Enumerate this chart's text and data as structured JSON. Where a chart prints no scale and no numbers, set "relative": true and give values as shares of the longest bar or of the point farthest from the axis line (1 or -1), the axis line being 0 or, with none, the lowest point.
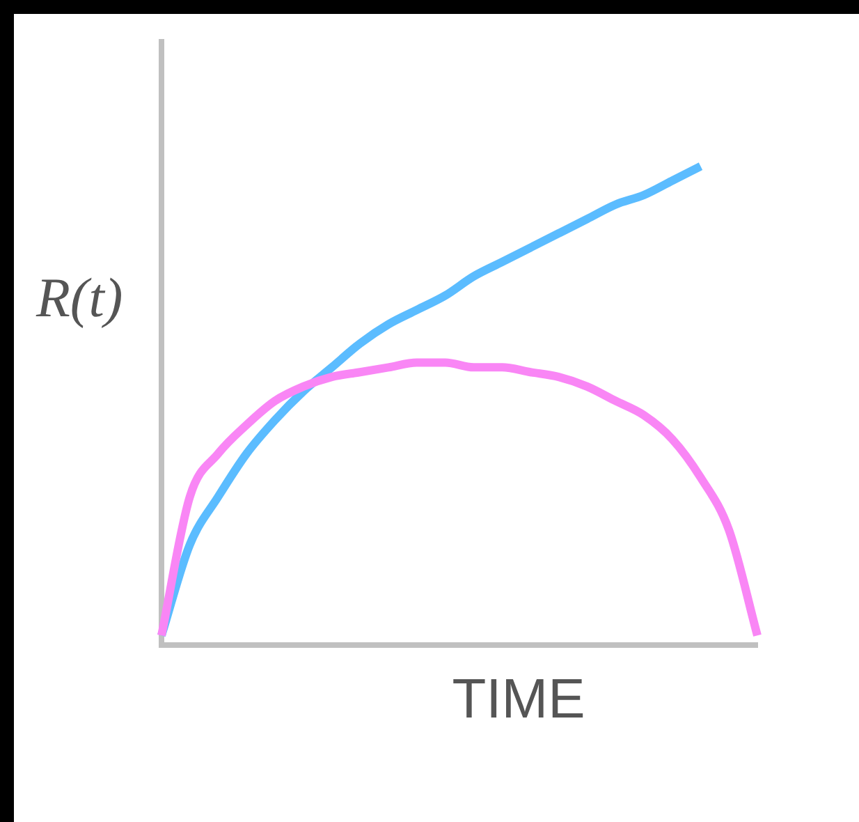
{
  "chart_data": {
    "type": "line",
    "relative": true,
    "xlabel": "TIME",
    "ylabel": "R(t)",
    "grid": false,
    "legend": false,
    "marker": "none",
    "line_style": "solid",
    "categories": [
      null,
      null,
      null,
      null,
      null,
      null,
      null,
      null,
      null,
      null,
      null,
      null,
      null,
      null,
      null,
      null,
      null,
      null,
      null,
      null,
      null,
      null
    ],
    "series": [
      {
        "color": "#5bbcff",
        "values": [
          0.02,
          0.21,
          0.31,
          0.4,
          0.47,
          0.53,
          0.58,
          0.63,
          0.67,
          0.7,
          0.73,
          0.77,
          0.8,
          0.83,
          0.86,
          0.89,
          0.92,
          0.94,
          0.97,
          1,
          null,
          null
        ]
      },
      {
        "color": "#f986f5",
        "values": [
          0.02,
          0.31,
          0.4,
          0.46,
          0.51,
          0.54,
          0.56,
          0.57,
          0.58,
          0.59,
          0.59,
          0.58,
          0.58,
          0.57,
          0.56,
          0.54,
          0.51,
          0.48,
          0.43,
          0.35,
          0.24,
          0.02
        ]
      }
    ]
  }
}
